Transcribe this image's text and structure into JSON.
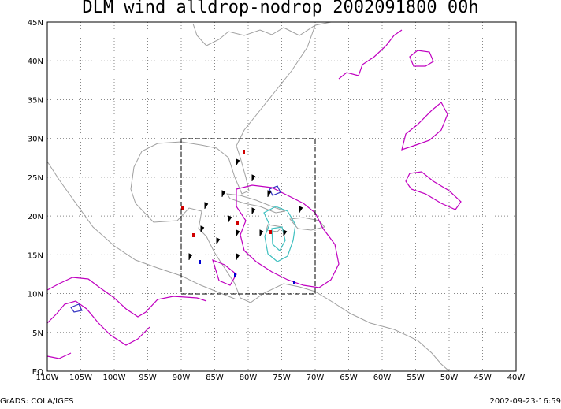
{
  "title": "DLM wind alldrop-nodrop 2002091800 00h",
  "x_axis_labels": [
    "110W",
    "105W",
    "100W",
    "95W",
    "90W",
    "85W",
    "80W",
    "75W",
    "70W",
    "65W",
    "60W",
    "55W",
    "50W",
    "45W",
    "40W"
  ],
  "y_axis_labels": [
    "EQ",
    "5N",
    "10N",
    "15N",
    "20N",
    "25N",
    "30N",
    "35N",
    "40N",
    "45N"
  ],
  "footer": {
    "left": "GrADS: COLA/IGES",
    "right": "2002-09-23-16:59"
  }
}
